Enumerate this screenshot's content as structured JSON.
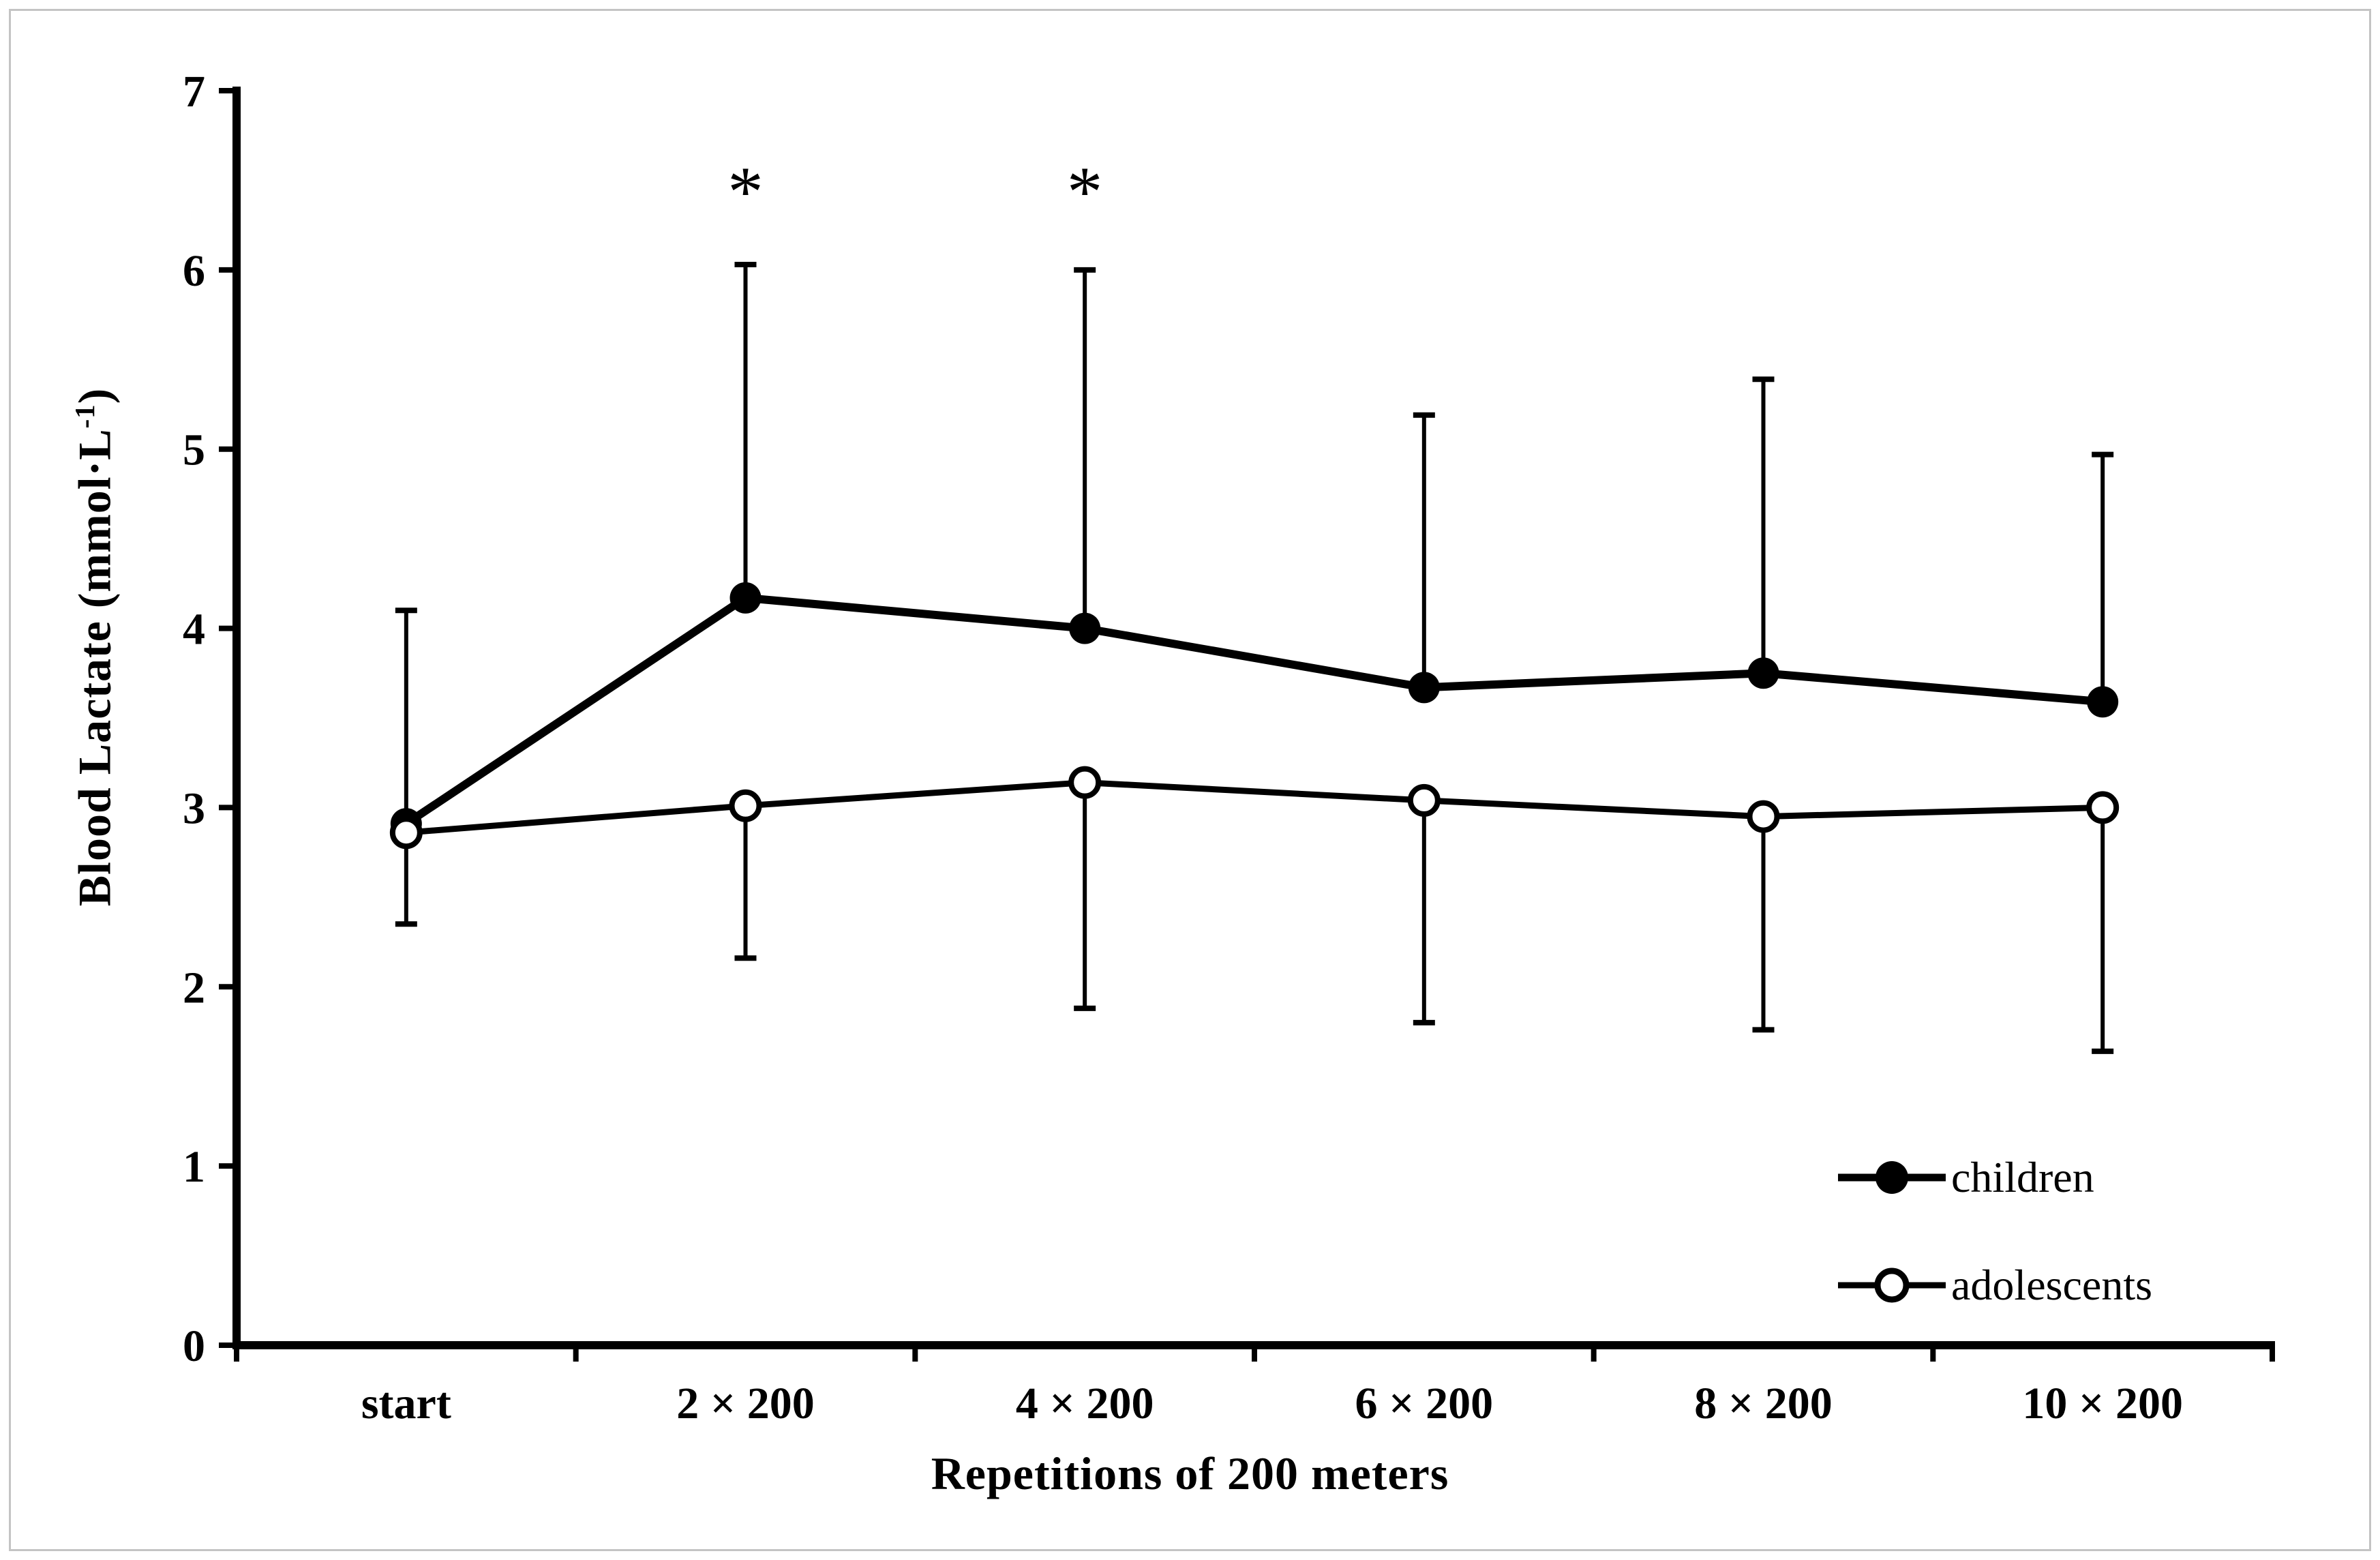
{
  "figure": {
    "background": "#ffffff",
    "border_color": "#c4c4c4",
    "text_color": "#000000"
  },
  "chart_data": {
    "type": "line",
    "title": "",
    "xlabel": "Repetitions of 200 meters",
    "ylabel_prefix": "Blood Lactate (mmol·L",
    "ylabel_sup": "-1",
    "ylabel_suffix": ")",
    "categories": [
      "start",
      "2 × 200",
      "4 × 200",
      "6 × 200",
      "8 × 200",
      "10 × 200"
    ],
    "yticks": [
      "0",
      "1",
      "2",
      "3",
      "4",
      "5",
      "6",
      "7"
    ],
    "ylim": [
      0,
      7
    ],
    "grid": false,
    "legend_position": "lower-right",
    "series": [
      {
        "name": "children",
        "marker": "filled-circle",
        "color": "#000000",
        "values": [
          2.91,
          4.17,
          4.0,
          3.67,
          3.75,
          3.59
        ],
        "error_up": [
          1.19,
          1.86,
          2.0,
          1.52,
          1.64,
          1.38
        ]
      },
      {
        "name": "adolescents",
        "marker": "open-circle",
        "color": "#000000",
        "values": [
          2.86,
          3.01,
          3.14,
          3.04,
          2.95,
          3.0
        ],
        "error_down": [
          0.51,
          0.85,
          1.26,
          1.24,
          1.19,
          1.36
        ]
      }
    ],
    "annotations": [
      {
        "text": "*",
        "category_index": 1,
        "y_value": 6.5
      },
      {
        "text": "*",
        "category_index": 2,
        "y_value": 6.5
      }
    ]
  }
}
